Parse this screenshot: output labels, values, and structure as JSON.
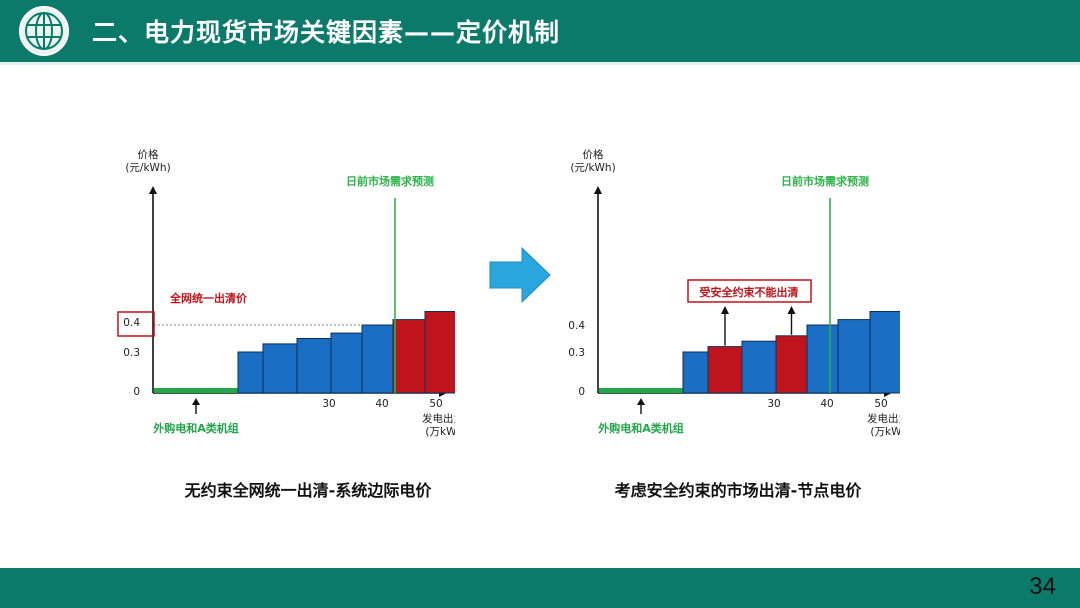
{
  "header": {
    "title": "二、电力现货市场关键因素——定价机制"
  },
  "footer": {
    "page_number": "34"
  },
  "colors": {
    "header_bg": "#0b7a6a",
    "bar_blue": "#1a6fc4",
    "bar_red": "#c0141c",
    "bar_green": "#22a84a",
    "demand_line": "#2db34a",
    "label_red": "#c0141c"
  },
  "chart_data": [
    {
      "type": "bar",
      "subtype": "supply-stack",
      "y_label_lines": [
        "价格",
        "(元/kWh)"
      ],
      "x_label_lines": [
        "发电出力",
        "(万kW)"
      ],
      "x_ticks": [
        "30",
        "40",
        "50"
      ],
      "y_ticks": [
        "0",
        "0.3",
        "0.4"
      ],
      "demand_label": "日前市场需求预测",
      "annotation": "全网统一出清价",
      "highlight_tick": "0.4",
      "external_label": "外购电和A类机组",
      "caption": "无约束全网统一出清-系统边际电价",
      "bars": [
        {
          "value": 0.3,
          "color": "blue"
        },
        {
          "value": 0.33,
          "color": "blue"
        },
        {
          "value": 0.35,
          "color": "blue"
        },
        {
          "value": 0.37,
          "color": "blue"
        },
        {
          "value": 0.4,
          "color": "blue"
        },
        {
          "value": 0.42,
          "color": "red"
        },
        {
          "value": 0.45,
          "color": "red"
        }
      ]
    },
    {
      "type": "bar",
      "subtype": "supply-stack",
      "y_label_lines": [
        "价格",
        "(元/kWh)"
      ],
      "x_label_lines": [
        "发电出力",
        "(万kW)"
      ],
      "x_ticks": [
        "30",
        "40",
        "50"
      ],
      "y_ticks": [
        "0",
        "0.3",
        "0.4"
      ],
      "demand_label": "日前市场需求预测",
      "annotation": "受安全约束不能出清",
      "external_label": "外购电和A类机组",
      "caption": "考虑安全约束的市场出清-节点电价",
      "bars": [
        {
          "value": 0.3,
          "color": "blue"
        },
        {
          "value": 0.32,
          "color": "red"
        },
        {
          "value": 0.34,
          "color": "blue"
        },
        {
          "value": 0.36,
          "color": "red"
        },
        {
          "value": 0.4,
          "color": "blue"
        },
        {
          "value": 0.42,
          "color": "blue"
        },
        {
          "value": 0.45,
          "color": "blue"
        }
      ]
    }
  ]
}
